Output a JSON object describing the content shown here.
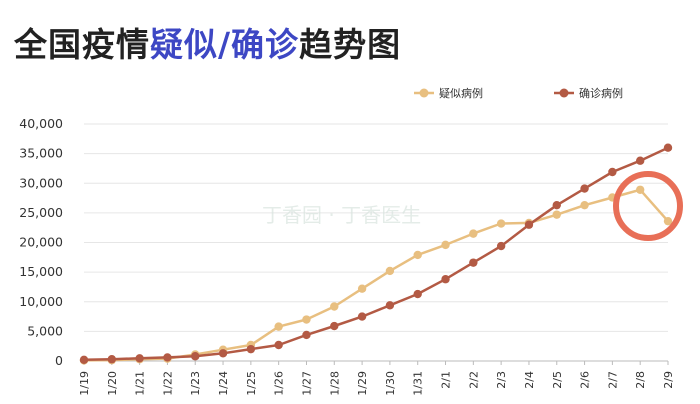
{
  "title": {
    "part1": "全国疫情",
    "highlight": "疑似/确诊",
    "part2": "趋势图"
  },
  "watermark": "丁香园 · 丁香医生",
  "colors": {
    "suspected": "#e8bf80",
    "confirmed": "#b35a44",
    "circle": "#e86f57",
    "highlight": "#3d47c4"
  },
  "chart_data": {
    "type": "line",
    "categories": [
      "1/19",
      "1/20",
      "1/21",
      "1/22",
      "1/23",
      "1/24",
      "1/25",
      "1/26",
      "1/27",
      "1/28",
      "1/29",
      "1/30",
      "1/31",
      "2/1",
      "2/2",
      "2/3",
      "2/4",
      "2/5",
      "2/6",
      "2/7",
      "2/8",
      "2/9"
    ],
    "series": [
      {
        "name": "疑似病例",
        "values": [
          100,
          150,
          300,
          400,
          1100,
          1900,
          2700,
          5800,
          7000,
          9200,
          12200,
          15200,
          17900,
          19600,
          21500,
          23200,
          23300,
          24700,
          26300,
          27600,
          28900,
          23600
        ]
      },
      {
        "name": "确诊病例",
        "values": [
          200,
          300,
          450,
          600,
          800,
          1300,
          2000,
          2700,
          4400,
          5900,
          7500,
          9400,
          11300,
          13800,
          16600,
          19400,
          23000,
          26300,
          29100,
          31900,
          33800,
          36000
        ]
      }
    ],
    "ylim": [
      0,
      40000
    ],
    "yticks": [
      "0",
      "5,000",
      "10,000",
      "15,000",
      "20,000",
      "25,000",
      "30,000",
      "35,000",
      "40,000"
    ],
    "ytick_values": [
      0,
      5000,
      10000,
      15000,
      20000,
      25000,
      30000,
      35000,
      40000
    ],
    "grid": true,
    "legend": "top-right"
  }
}
